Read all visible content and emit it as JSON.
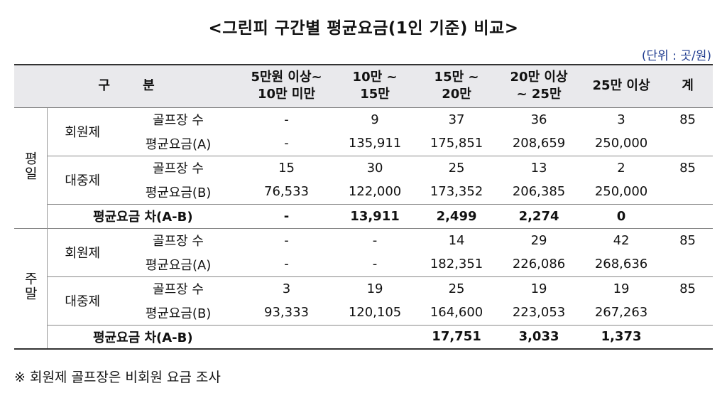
{
  "title": "<그린피 구간별 평균요금(1인 기준) 비교>",
  "unit_note": "(단위 : 곳/원)",
  "header": {
    "category": "구 분",
    "col1_line1": "5만원 이상~",
    "col1_line2": "10만 미만",
    "col2_line1": "10만 ~",
    "col2_line2": "15만",
    "col3_line1": "15만 ~",
    "col3_line2": "20만",
    "col4_line1": "20만 이상",
    "col4_line2": "~ 25만",
    "col5": "25만 이상",
    "col6": "계"
  },
  "weekday": {
    "label": "평일",
    "member": {
      "label": "회원제",
      "count_label": "골프장 수",
      "avg_label": "평균요금(A)",
      "counts": [
        "-",
        "9",
        "37",
        "36",
        "3",
        "85"
      ],
      "avgs": [
        "-",
        "135,911",
        "175,851",
        "208,659",
        "250,000",
        ""
      ]
    },
    "public": {
      "label": "대중제",
      "count_label": "골프장 수",
      "avg_label": "평균요금(B)",
      "counts": [
        "15",
        "30",
        "25",
        "13",
        "2",
        "85"
      ],
      "avgs": [
        "76,533",
        "122,000",
        "173,352",
        "206,385",
        "250,000",
        ""
      ]
    },
    "diff": {
      "label": "평균요금 차(A-B)",
      "values": [
        "-",
        "13,911",
        "2,499",
        "2,274",
        "0",
        ""
      ]
    }
  },
  "weekend": {
    "label": "주말",
    "member": {
      "label": "회원제",
      "count_label": "골프장 수",
      "avg_label": "평균요금(A)",
      "counts": [
        "-",
        "-",
        "14",
        "29",
        "42",
        "85"
      ],
      "avgs": [
        "-",
        "-",
        "182,351",
        "226,086",
        "268,636",
        ""
      ]
    },
    "public": {
      "label": "대중제",
      "count_label": "골프장 수",
      "avg_label": "평균요금(B)",
      "counts": [
        "3",
        "19",
        "25",
        "19",
        "19",
        "85"
      ],
      "avgs": [
        "93,333",
        "120,105",
        "164,600",
        "223,053",
        "267,263",
        ""
      ]
    },
    "diff": {
      "label": "평균요금 차(A-B)",
      "values": [
        "",
        "",
        "17,751",
        "3,033",
        "1,373",
        ""
      ]
    }
  },
  "footnote": "※ 회원제 골프장은 비회원 요금 조사"
}
